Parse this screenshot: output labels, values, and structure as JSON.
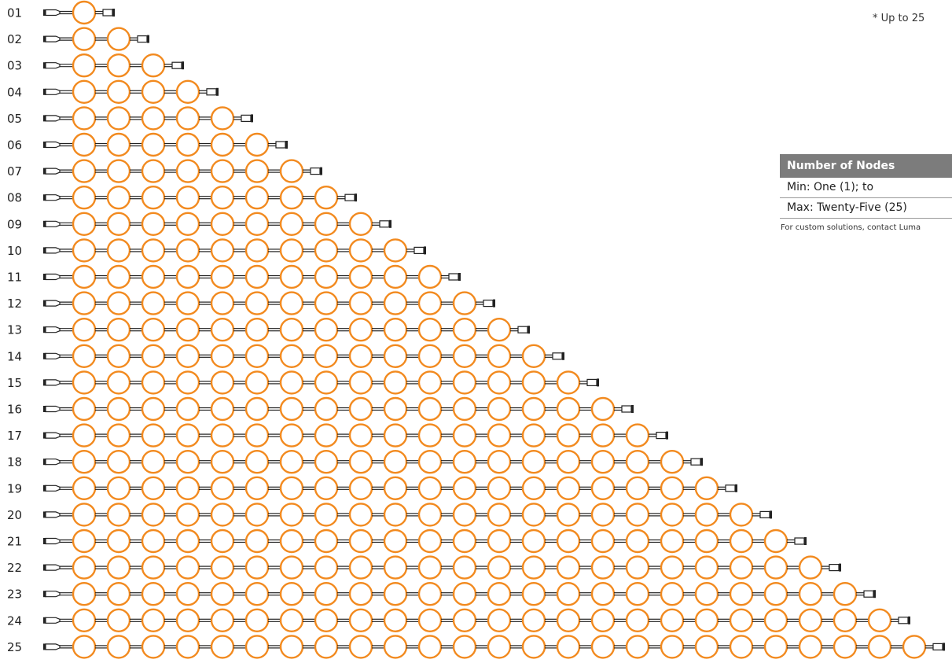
{
  "note": "* Up to 25",
  "spec": {
    "header": "Number of Nodes",
    "min_label": "Min: One (1); to",
    "max_label": "Max: Twenty-Five (25)",
    "footnote": "For custom solutions, contact Luma"
  },
  "colors": {
    "node_stroke": "#f28a1f",
    "wire": "#222222",
    "header_bg": "#7c7c7c"
  },
  "rows": [
    {
      "label": "01",
      "nodes": 1
    },
    {
      "label": "02",
      "nodes": 2
    },
    {
      "label": "03",
      "nodes": 3
    },
    {
      "label": "04",
      "nodes": 4
    },
    {
      "label": "05",
      "nodes": 5
    },
    {
      "label": "06",
      "nodes": 6
    },
    {
      "label": "07",
      "nodes": 7
    },
    {
      "label": "08",
      "nodes": 8
    },
    {
      "label": "09",
      "nodes": 9
    },
    {
      "label": "10",
      "nodes": 10
    },
    {
      "label": "11",
      "nodes": 11
    },
    {
      "label": "12",
      "nodes": 12
    },
    {
      "label": "13",
      "nodes": 13
    },
    {
      "label": "14",
      "nodes": 14
    },
    {
      "label": "15",
      "nodes": 15
    },
    {
      "label": "16",
      "nodes": 16
    },
    {
      "label": "17",
      "nodes": 17
    },
    {
      "label": "18",
      "nodes": 18
    },
    {
      "label": "19",
      "nodes": 19
    },
    {
      "label": "20",
      "nodes": 20
    },
    {
      "label": "21",
      "nodes": 21
    },
    {
      "label": "22",
      "nodes": 22
    },
    {
      "label": "23",
      "nodes": 23
    },
    {
      "label": "24",
      "nodes": 24
    },
    {
      "label": "25",
      "nodes": 25
    }
  ]
}
